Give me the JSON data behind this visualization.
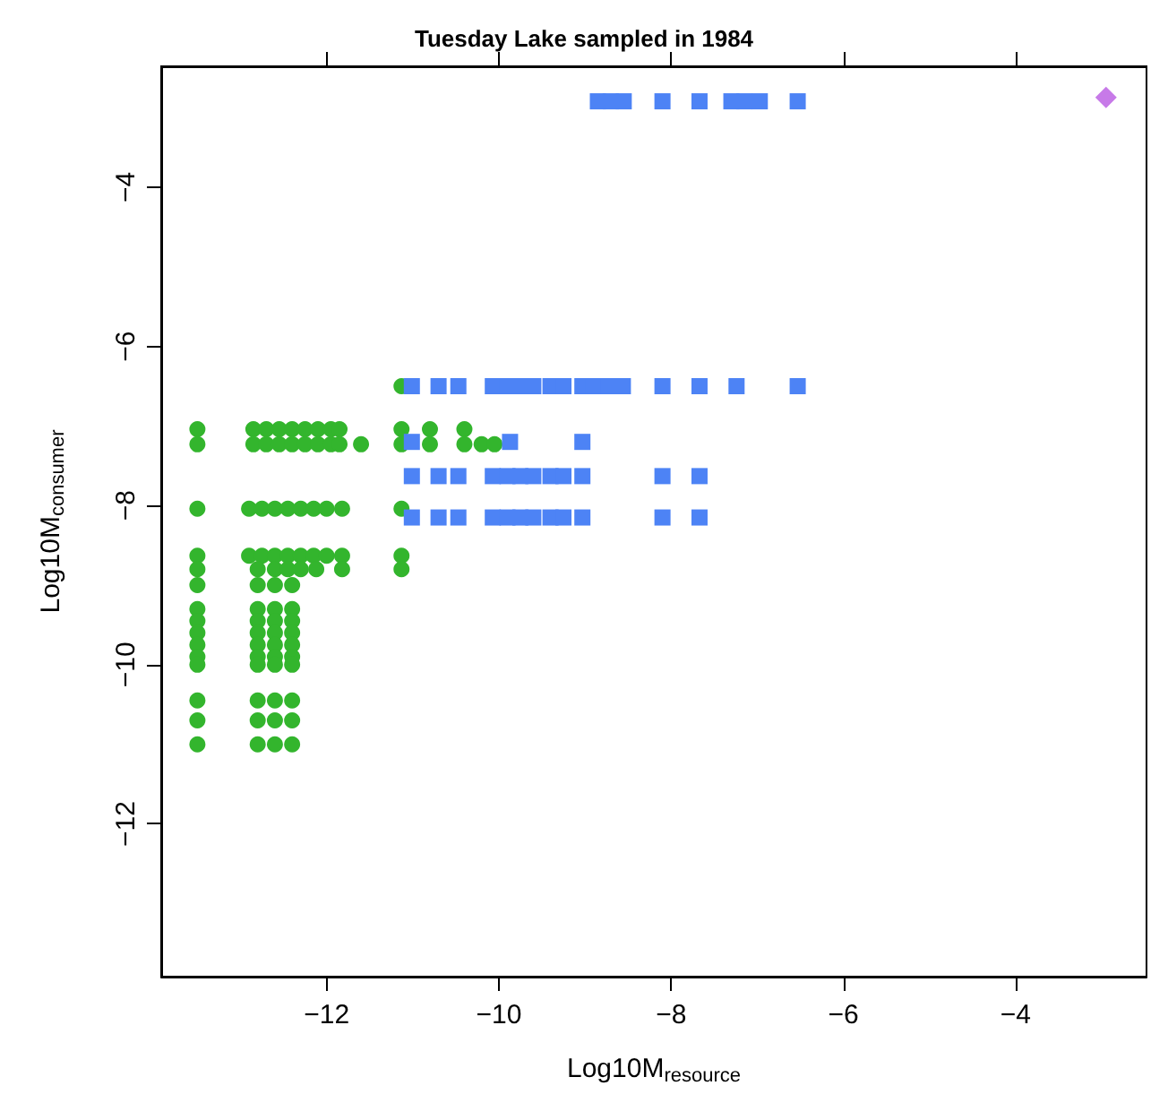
{
  "chart_data": {
    "type": "scatter",
    "title": "Tuesday Lake sampled in 1984",
    "xlabel": "Log10M$_{resource}$",
    "ylabel": "Log10M$_{consumer}$",
    "xlim": [
      -13.92,
      -2.48
    ],
    "ylim": [
      -13.92,
      -2.48
    ],
    "xticks": [
      -12,
      -10,
      -8,
      -6,
      -4
    ],
    "yticks": [
      -12,
      -10,
      -8,
      -6,
      -4
    ],
    "grid": false,
    "series": [
      {
        "color": "#33b52d",
        "marker": "circle",
        "x": [
          -13.5,
          -13.5,
          -13.5,
          -13.5,
          -13.5,
          -13.5,
          -13.5,
          -13.5,
          -13.5,
          -13.5,
          -13.5,
          -13.5,
          -13.5,
          -13.5,
          -13.5,
          -12.85,
          -12.7,
          -12.55,
          -12.4,
          -12.25,
          -12.1,
          -11.95,
          -11.85,
          -11.13,
          -10.8,
          -10.4,
          -12.85,
          -12.7,
          -12.55,
          -12.4,
          -12.25,
          -12.1,
          -11.95,
          -11.85,
          -11.6,
          -11.13,
          -10.8,
          -10.4,
          -10.2,
          -10.05,
          -12.9,
          -12.75,
          -12.6,
          -12.45,
          -12.3,
          -12.15,
          -12.0,
          -11.82,
          -11.13,
          -12.9,
          -12.75,
          -12.6,
          -12.45,
          -12.3,
          -12.15,
          -12.0,
          -11.82,
          -11.13,
          -12.8,
          -12.6,
          -12.45,
          -12.3,
          -12.12,
          -11.82,
          -11.13,
          -12.8,
          -12.6,
          -12.4,
          -12.8,
          -12.6,
          -12.4,
          -12.8,
          -12.6,
          -12.4,
          -12.8,
          -12.6,
          -12.4,
          -12.8,
          -12.6,
          -12.4,
          -12.8,
          -12.6,
          -12.4,
          -12.8,
          -12.6,
          -12.4,
          -12.8,
          -12.6,
          -12.4,
          -12.8,
          -12.6,
          -12.4,
          -12.8,
          -12.6,
          -12.4,
          -11.13
        ],
        "values": [
          -7.04,
          -7.23,
          -8.04,
          -8.63,
          -8.8,
          -9.0,
          -9.3,
          -9.45,
          -9.6,
          -9.75,
          -9.9,
          -10.0,
          -10.45,
          -10.7,
          -11.0,
          -7.04,
          -7.04,
          -7.04,
          -7.04,
          -7.04,
          -7.04,
          -7.04,
          -7.04,
          -7.04,
          -7.04,
          -7.04,
          -7.23,
          -7.23,
          -7.23,
          -7.23,
          -7.23,
          -7.23,
          -7.23,
          -7.23,
          -7.23,
          -7.23,
          -7.23,
          -7.23,
          -7.23,
          -7.23,
          -8.04,
          -8.04,
          -8.04,
          -8.04,
          -8.04,
          -8.04,
          -8.04,
          -8.04,
          -8.04,
          -8.63,
          -8.63,
          -8.63,
          -8.63,
          -8.63,
          -8.63,
          -8.63,
          -8.63,
          -8.63,
          -8.8,
          -8.8,
          -8.8,
          -8.8,
          -8.8,
          -8.8,
          -8.8,
          -9.0,
          -9.0,
          -9.0,
          -9.3,
          -9.3,
          -9.3,
          -9.45,
          -9.45,
          -9.45,
          -9.6,
          -9.6,
          -9.6,
          -9.75,
          -9.75,
          -9.75,
          -9.9,
          -9.9,
          -9.9,
          -10.0,
          -10.0,
          -10.0,
          -10.45,
          -10.45,
          -10.45,
          -10.7,
          -10.7,
          -10.7,
          -11.0,
          -11.0,
          -11.0,
          -6.5
        ]
      },
      {
        "color": "#4d83f5",
        "marker": "square",
        "x": [
          -8.85,
          -8.7,
          -8.55,
          -8.1,
          -7.67,
          -7.3,
          -7.15,
          -6.97,
          -6.53,
          -11.01,
          -10.7,
          -10.47,
          -10.07,
          -9.9,
          -9.75,
          -9.6,
          -9.4,
          -9.25,
          -9.03,
          -8.9,
          -8.73,
          -8.56,
          -8.1,
          -7.67,
          -7.24,
          -6.53,
          -11.01,
          -9.87,
          -9.03,
          -11.01,
          -10.7,
          -10.47,
          -10.07,
          -9.9,
          -9.75,
          -9.6,
          -9.4,
          -9.25,
          -9.03,
          -8.1,
          -7.67,
          -11.01,
          -10.7,
          -10.47,
          -10.07,
          -9.9,
          -9.75,
          -9.6,
          -9.4,
          -9.25,
          -9.03,
          -8.1,
          -7.67
        ],
        "values": [
          -2.92,
          -2.92,
          -2.92,
          -2.92,
          -2.92,
          -2.92,
          -2.92,
          -2.92,
          -2.92,
          -6.5,
          -6.5,
          -6.5,
          -6.5,
          -6.5,
          -6.5,
          -6.5,
          -6.5,
          -6.5,
          -6.5,
          -6.5,
          -6.5,
          -6.5,
          -6.5,
          -6.5,
          -6.5,
          -6.5,
          -7.2,
          -7.2,
          -7.2,
          -7.63,
          -7.63,
          -7.63,
          -7.63,
          -7.63,
          -7.63,
          -7.63,
          -7.63,
          -7.63,
          -7.63,
          -7.63,
          -7.63,
          -8.15,
          -8.15,
          -8.15,
          -8.15,
          -8.15,
          -8.15,
          -8.15,
          -8.15,
          -8.15,
          -8.15,
          -8.15,
          -8.15
        ]
      },
      {
        "color": "#c77ae8",
        "marker": "diamond",
        "x": [
          -2.95
        ],
        "values": [
          -2.87
        ]
      }
    ]
  }
}
